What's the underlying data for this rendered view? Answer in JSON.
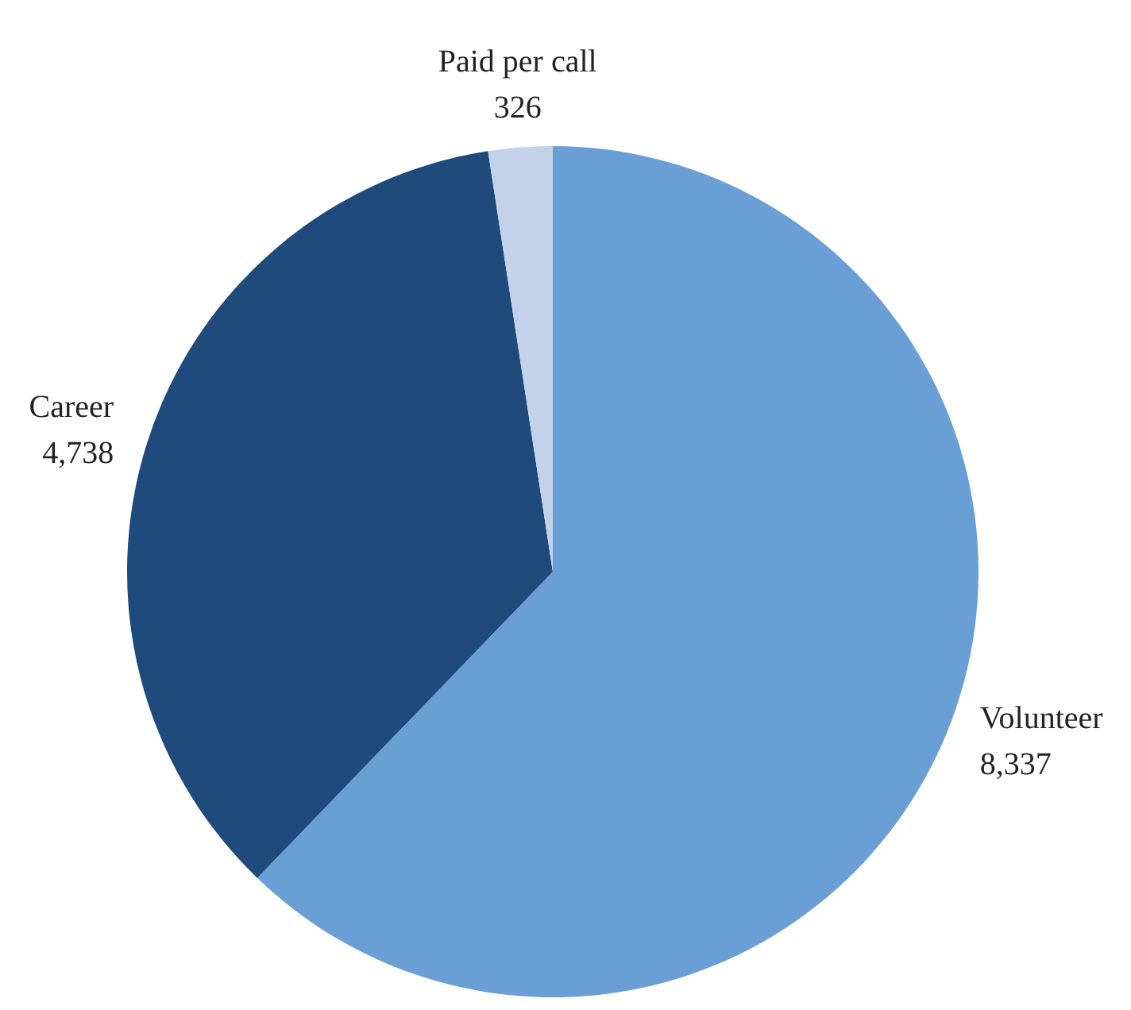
{
  "chart_data": {
    "type": "pie",
    "categories": [
      "Volunteer",
      "Career",
      "Paid per call"
    ],
    "values": [
      8337,
      4738,
      326
    ],
    "colors": [
      "#6a9fd6",
      "#1e4a7c",
      "#c3d2ea"
    ],
    "value_labels": [
      "8,337",
      "4,738",
      "326"
    ]
  }
}
